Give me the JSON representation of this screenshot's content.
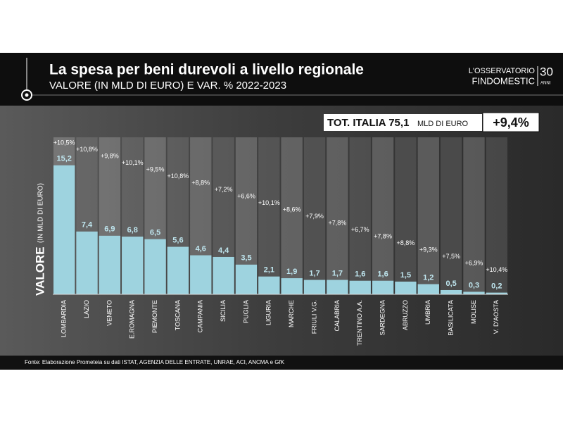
{
  "header": {
    "title": "La spesa per beni durevoli a livello regionale",
    "subtitle": "VALORE (IN MLD DI EURO) E VAR. % 2022-2023",
    "logo": {
      "line1": "L'OSSERVATORIO",
      "line2": "FINDOMESTIC",
      "number": "30",
      "word": "ANNI"
    }
  },
  "total": {
    "label": "TOT. ITALIA 75,1",
    "unit": "MLD DI EURO",
    "change": "+9,4%"
  },
  "chart_data": {
    "type": "bar",
    "y_label": "VALORE",
    "y_label_unit": "(IN MLD DI EURO)",
    "categories": [
      "LOMBARDIA",
      "LAZIO",
      "VENETO",
      "E.ROMAGNA",
      "PIEMONTE",
      "TOSCANA",
      "CAMPANIA",
      "SICILIA",
      "PUGLIA",
      "LIGURIA",
      "MARCHE",
      "FRIULI V.G.",
      "CALABRIA",
      "TRENTINO A.A.",
      "SARDEGNA",
      "ABRUZZO",
      "UMBRIA",
      "BASILICATA",
      "MOLISE",
      "V. D'AOSTA"
    ],
    "values": [
      15.2,
      7.4,
      6.9,
      6.8,
      6.5,
      5.6,
      4.6,
      4.4,
      3.5,
      2.1,
      1.9,
      1.7,
      1.7,
      1.6,
      1.6,
      1.5,
      1.2,
      0.5,
      0.3,
      0.2
    ],
    "value_labels": [
      "15,2",
      "7,4",
      "6,9",
      "6,8",
      "6,5",
      "5,6",
      "4,6",
      "4,4",
      "3,5",
      "2,1",
      "1,9",
      "1,7",
      "1,7",
      "1,6",
      "1,6",
      "1,5",
      "1,2",
      "0,5",
      "0,3",
      "0,2"
    ],
    "changes": {
      "values": [
        10.5,
        10.8,
        9.8,
        10.1,
        9.5,
        10.8,
        8.8,
        7.2,
        6.6,
        10.1,
        8.6,
        7.9,
        7.8,
        6.7,
        7.8,
        8.8,
        9.3,
        7.5,
        6.9,
        10.4
      ],
      "value_labels": [
        "+10,5%",
        "+10,8%",
        "+9,8%",
        "+10,1%",
        "+9,5%",
        "+10,8%",
        "+8,8%",
        "+7,2%",
        "+6,6%",
        "+10,1%",
        "+8,6%",
        "+7,9%",
        "+7,8%",
        "+6,7%",
        "+7,8%",
        "+8,8%",
        "+9,3%",
        "+7,5%",
        "+6,9%",
        "+10,4%"
      ]
    },
    "color": "#9ed3df",
    "ylim": [
      0,
      18.5
    ]
  },
  "source": "Fonte: Elaborazione Prometeia su dati ISTAT, AGENZIA DELLE ENTRATE, UNRAE, ACI, ANCMA e GfK"
}
